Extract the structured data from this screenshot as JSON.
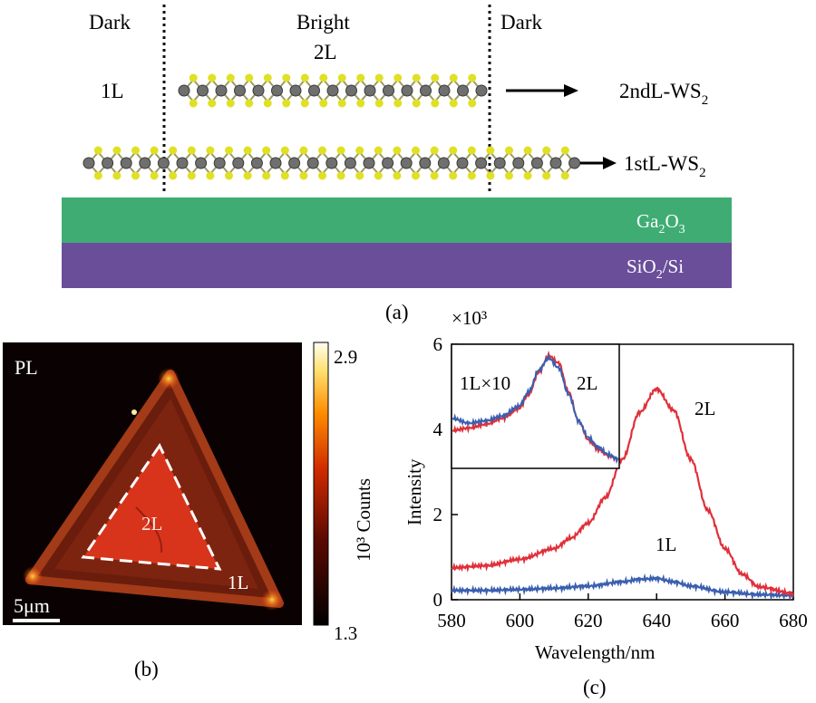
{
  "panel_a": {
    "label": "(a)",
    "region_left": "Dark",
    "region_center": "Bright",
    "region_right": "Dark",
    "layer_1l": "1L",
    "layer_2l": "2L",
    "arrow_2nd_main": "2ndL-WS",
    "arrow_2nd_sub": "2",
    "arrow_1st_main": "1stL-WS",
    "arrow_1st_sub": "2",
    "substrate_top_a": "Ga",
    "substrate_top_sub1": "2",
    "substrate_top_b": "O",
    "substrate_top_sub2": "3",
    "substrate_bottom_a": "SiO",
    "substrate_bottom_sub": "2",
    "substrate_bottom_b": "/Si",
    "colors": {
      "ga2o3": "#3fad73",
      "sio2": "#6a4e9a",
      "sulfur": "#e0e024",
      "tungsten": "#6f6f6f"
    }
  },
  "panel_b": {
    "label": "(b)",
    "map_title": "PL",
    "region_2l": "2L",
    "region_1l": "1L",
    "scalebar": "5μm",
    "colorbar_max": "2.9",
    "colorbar_min": "1.3",
    "colorbar_label": "10³ Counts"
  },
  "panel_c": {
    "label": "(c)",
    "inset_label_1l": "1L×10",
    "inset_label_2l": "2L",
    "curve_label_2l": "2L",
    "curve_label_1l": "1L",
    "multiplier": "×10³"
  },
  "chart_data": {
    "type": "line",
    "xlabel": "Wavelength/nm",
    "ylabel": "Intensity",
    "xlim": [
      580,
      680
    ],
    "ylim": [
      0,
      6
    ],
    "xticks": [
      "580",
      "600",
      "620",
      "640",
      "660",
      "680"
    ],
    "yticks": [
      "0",
      "2",
      "4",
      "6"
    ],
    "series": [
      {
        "name": "2L",
        "color": "#e0303a",
        "x": [
          580,
          590,
          600,
          610,
          615,
          620,
          625,
          630,
          635,
          640,
          645,
          650,
          655,
          660,
          665,
          670,
          680
        ],
        "y": [
          0.75,
          0.8,
          0.95,
          1.2,
          1.45,
          1.8,
          2.4,
          3.3,
          4.4,
          4.95,
          4.45,
          3.3,
          2.1,
          1.2,
          0.6,
          0.3,
          0.15
        ]
      },
      {
        "name": "1L",
        "color": "#3a5fb0",
        "x": [
          580,
          590,
          600,
          610,
          620,
          630,
          635,
          640,
          645,
          650,
          660,
          670,
          680
        ],
        "y": [
          0.22,
          0.22,
          0.24,
          0.27,
          0.32,
          0.42,
          0.48,
          0.5,
          0.42,
          0.32,
          0.18,
          0.12,
          0.1
        ]
      }
    ],
    "inset": {
      "xlim": [
        580,
        630
      ],
      "series": [
        {
          "name": "1L×10",
          "color": "#3a5fb0",
          "x": [
            580,
            585,
            590,
            595,
            600,
            603,
            606,
            609,
            612,
            615,
            618,
            621,
            624,
            627,
            630
          ],
          "y": [
            0.4,
            0.36,
            0.38,
            0.42,
            0.5,
            0.62,
            0.8,
            0.9,
            0.82,
            0.6,
            0.38,
            0.24,
            0.16,
            0.1,
            0.06
          ]
        },
        {
          "name": "2L",
          "color": "#e0303a",
          "x": [
            580,
            585,
            590,
            595,
            600,
            603,
            606,
            609,
            612,
            615,
            618,
            621,
            624,
            627,
            630
          ],
          "y": [
            0.3,
            0.32,
            0.35,
            0.4,
            0.48,
            0.6,
            0.78,
            0.92,
            0.86,
            0.62,
            0.38,
            0.22,
            0.14,
            0.09,
            0.06
          ]
        }
      ]
    }
  }
}
